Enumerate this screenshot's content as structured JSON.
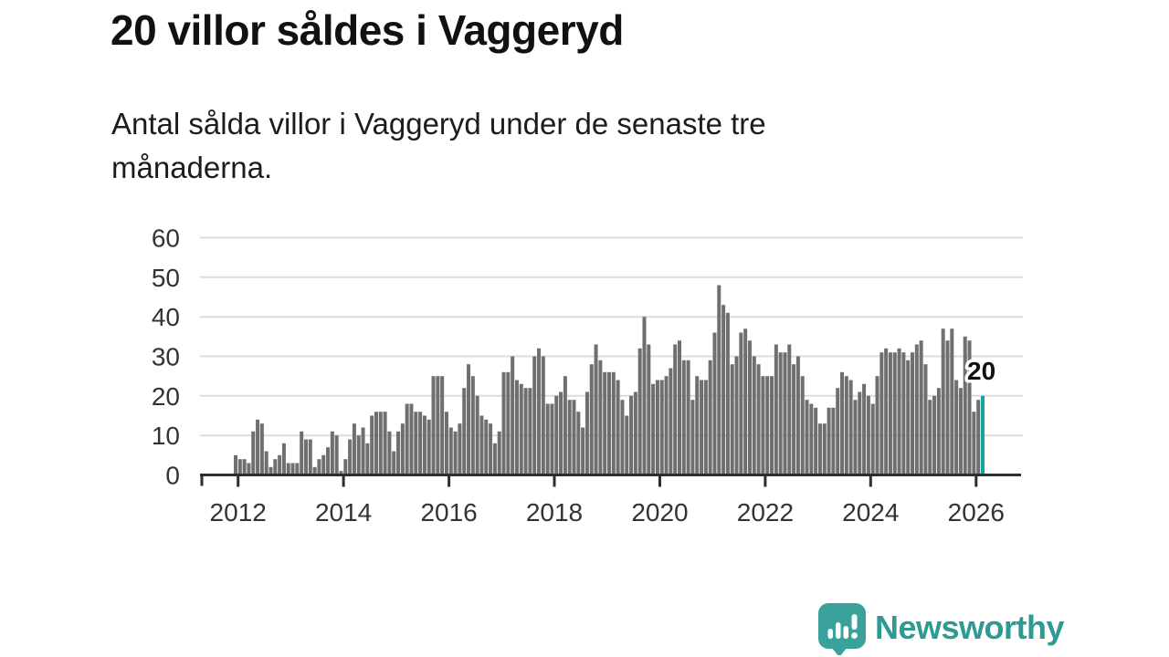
{
  "header": {
    "title": "20 villor såldes i Vaggeryd",
    "subtitle": "Antal sålda villor i Vaggeryd under de senaste tre månaderna."
  },
  "chart_data": {
    "type": "bar",
    "title": "20 villor såldes i Vaggeryd",
    "subtitle": "Antal sålda villor i Vaggeryd under de senaste tre månaderna.",
    "xlabel": "",
    "ylabel": "",
    "ylim": [
      0,
      60
    ],
    "y_ticks": [
      0,
      10,
      20,
      30,
      40,
      50,
      60
    ],
    "x_tick_labels": [
      "2012",
      "2014",
      "2016",
      "2018",
      "2020",
      "2022",
      "2024",
      "2026"
    ],
    "grid": true,
    "start_year": 2012,
    "bars_per_year": 12,
    "values": [
      5,
      4,
      4,
      3,
      11,
      14,
      13,
      6,
      2,
      4,
      5,
      8,
      3,
      3,
      3,
      11,
      9,
      9,
      2,
      4,
      5,
      7,
      11,
      10,
      1,
      4,
      9,
      13,
      10,
      12,
      8,
      15,
      16,
      16,
      16,
      11,
      6,
      11,
      13,
      18,
      18,
      16,
      16,
      15,
      14,
      25,
      25,
      25,
      16,
      12,
      11,
      13,
      22,
      28,
      25,
      20,
      15,
      14,
      13,
      8,
      11,
      26,
      26,
      30,
      24,
      23,
      22,
      22,
      30,
      32,
      30,
      18,
      18,
      20,
      21,
      25,
      19,
      19,
      16,
      12,
      21,
      28,
      33,
      29,
      26,
      26,
      26,
      24,
      19,
      15,
      20,
      21,
      32,
      40,
      33,
      23,
      24,
      24,
      25,
      27,
      33,
      34,
      29,
      29,
      19,
      25,
      24,
      24,
      29,
      36,
      48,
      43,
      41,
      28,
      30,
      36,
      37,
      34,
      30,
      28,
      25,
      25,
      25,
      33,
      31,
      31,
      33,
      28,
      30,
      25,
      19,
      18,
      17,
      13,
      13,
      17,
      17,
      22,
      26,
      25,
      24,
      19,
      21,
      23,
      20,
      18,
      25,
      31,
      32,
      31,
      31,
      32,
      31,
      29,
      31,
      33,
      34,
      28,
      19,
      20,
      22,
      37,
      34,
      37,
      24,
      22,
      35,
      34,
      16,
      19,
      20
    ],
    "highlight": {
      "index": 170,
      "value": 20,
      "label": "20"
    },
    "colors": {
      "bar": "#6f6f6f",
      "highlight": "#13a5a0",
      "grid": "#dcdcdc",
      "axis": "#2e2e2e",
      "tick_text": "#333333"
    },
    "legend": null
  },
  "footer": {
    "brand": "Newsworthy",
    "brand_color": "#2e9a94"
  }
}
